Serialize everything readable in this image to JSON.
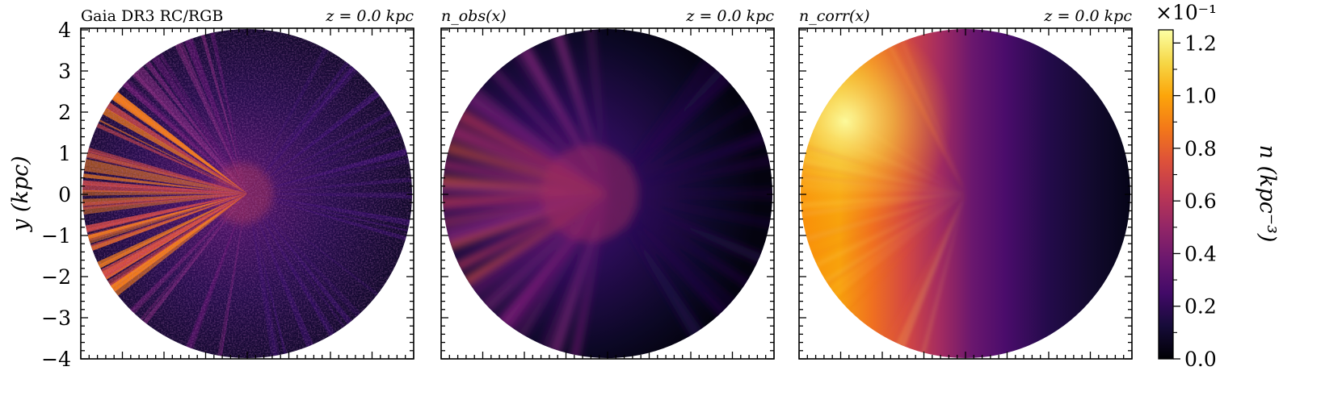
{
  "chart_data": {
    "type": "heatmap",
    "panels": [
      {
        "title_left": "Gaia DR3 RC/RGB",
        "title_right": "z = 0.0 kpc",
        "map": "observed-star-counts"
      },
      {
        "title_left": "n_obs(x)",
        "title_right": "z = 0.0 kpc",
        "map": "smoothed-observed-density"
      },
      {
        "title_left": "n_corr(x)",
        "title_right": "z = 0.0 kpc",
        "map": "corrected-density"
      }
    ],
    "y_axis": {
      "label": "y (kpc)",
      "range": [
        -4,
        4
      ],
      "ticks": [
        "4",
        "3",
        "2",
        "1",
        "0",
        "−1",
        "−2",
        "−3",
        "−4"
      ]
    },
    "colorbar": {
      "label": "n (kpc⁻³)",
      "multiplier": "×10⁻¹",
      "range": [
        0.0,
        1.25
      ],
      "ticks": [
        "0.0",
        "0.2",
        "0.4",
        "0.6",
        "0.8",
        "1.0",
        "1.2"
      ],
      "colormap": "inferno"
    },
    "grid": false
  },
  "colors": {
    "low": "#000004",
    "mid": "#8c2981",
    "high": "#fcfdbf"
  }
}
